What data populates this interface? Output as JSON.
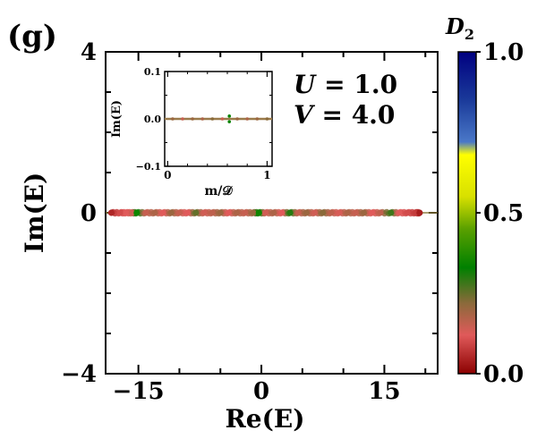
{
  "panel_label": "(g)",
  "annotation": {
    "line1": "U = 1.0",
    "line2": "V = 4.0",
    "var1": "U",
    "val1": " = 1.0",
    "var2": "V",
    "val2": " = 4.0"
  },
  "colorbar": {
    "label_main": "D",
    "label_sub": "2",
    "ticks": [
      "0.0",
      "0.5",
      "1.0"
    ],
    "tick_values": [
      0.0,
      0.5,
      1.0
    ],
    "stops": [
      {
        "v": 0.0,
        "color": "#8b0000"
      },
      {
        "v": 0.12,
        "color": "#e05a5a"
      },
      {
        "v": 0.22,
        "color": "#8a6a3a"
      },
      {
        "v": 0.33,
        "color": "#008000"
      },
      {
        "v": 0.45,
        "color": "#5aa000"
      },
      {
        "v": 0.55,
        "color": "#d8e000"
      },
      {
        "v": 0.68,
        "color": "#ffff00"
      },
      {
        "v": 0.72,
        "color": "#4a78c8"
      },
      {
        "v": 0.85,
        "color": "#1a3a9a"
      },
      {
        "v": 1.0,
        "color": "#000080"
      }
    ]
  },
  "chart_data": [
    {
      "type": "scatter",
      "name": "main",
      "xlabel": "Re(E)",
      "ylabel": "Im(E)",
      "xlim": [
        -19,
        21.5
      ],
      "ylim": [
        -4,
        4
      ],
      "xticks": [
        -15,
        0,
        15
      ],
      "xtick_labels": [
        "−15",
        "0",
        "15"
      ],
      "yticks": [
        -4,
        0,
        4
      ],
      "ytick_labels": [
        "−4",
        "0",
        "4"
      ],
      "grid": false,
      "points": [
        {
          "x": -18.3,
          "y": 0,
          "c": 0.05
        },
        {
          "x": -17.2,
          "y": 0,
          "c": 0.1
        },
        {
          "x": -16.5,
          "y": 0,
          "c": 0.12
        },
        {
          "x": -15.8,
          "y": 0,
          "c": 0.14
        },
        {
          "x": -15.2,
          "y": 0,
          "c": 0.35
        },
        {
          "x": -14.1,
          "y": 0,
          "c": 0.15
        },
        {
          "x": -13.0,
          "y": 0,
          "c": 0.18
        },
        {
          "x": -12.0,
          "y": 0,
          "c": 0.12
        },
        {
          "x": -11.0,
          "y": 0,
          "c": 0.2
        },
        {
          "x": -10.0,
          "y": 0,
          "c": 0.15
        },
        {
          "x": -9.0,
          "y": 0,
          "c": 0.12
        },
        {
          "x": -8.0,
          "y": 0,
          "c": 0.25
        },
        {
          "x": -7.0,
          "y": 0,
          "c": 0.14
        },
        {
          "x": -6.0,
          "y": 0,
          "c": 0.16
        },
        {
          "x": -5.0,
          "y": 0,
          "c": 0.2
        },
        {
          "x": -4.0,
          "y": 0,
          "c": 0.12
        },
        {
          "x": -3.0,
          "y": 0,
          "c": 0.18
        },
        {
          "x": -2.0,
          "y": 0,
          "c": 0.15
        },
        {
          "x": -1.0,
          "y": 0,
          "c": 0.2
        },
        {
          "x": -0.3,
          "y": 0,
          "c": 0.35
        },
        {
          "x": 0.5,
          "y": 0,
          "c": 0.14
        },
        {
          "x": 1.5,
          "y": 0,
          "c": 0.18
        },
        {
          "x": 2.5,
          "y": 0,
          "c": 0.12
        },
        {
          "x": 3.5,
          "y": 0,
          "c": 0.3
        },
        {
          "x": 4.5,
          "y": 0,
          "c": 0.15
        },
        {
          "x": 5.5,
          "y": 0,
          "c": 0.2
        },
        {
          "x": 6.5,
          "y": 0,
          "c": 0.14
        },
        {
          "x": 7.5,
          "y": 0,
          "c": 0.22
        },
        {
          "x": 8.5,
          "y": 0,
          "c": 0.16
        },
        {
          "x": 9.5,
          "y": 0,
          "c": 0.13
        },
        {
          "x": 10.5,
          "y": 0,
          "c": 0.18
        },
        {
          "x": 11.5,
          "y": 0,
          "c": 0.15
        },
        {
          "x": 12.5,
          "y": 0,
          "c": 0.2
        },
        {
          "x": 13.5,
          "y": 0,
          "c": 0.12
        },
        {
          "x": 14.5,
          "y": 0,
          "c": 0.16
        },
        {
          "x": 15.8,
          "y": 0,
          "c": 0.28
        },
        {
          "x": 16.8,
          "y": 0,
          "c": 0.12
        },
        {
          "x": 17.8,
          "y": 0,
          "c": 0.1
        },
        {
          "x": 18.8,
          "y": 0,
          "c": 0.08
        },
        {
          "x": 19.3,
          "y": 0,
          "c": 0.04
        }
      ]
    },
    {
      "type": "scatter",
      "name": "inset",
      "xlabel": "m/𝒟",
      "ylabel": "Im(E)",
      "xlim": [
        -0.03,
        1.05
      ],
      "ylim": [
        -0.1,
        0.1
      ],
      "xticks": [
        0,
        1
      ],
      "xtick_labels": [
        "0",
        "1"
      ],
      "yticks": [
        -0.1,
        0.0,
        0.1
      ],
      "ytick_labels": [
        "−0.1",
        "0.0",
        "0.1"
      ],
      "grid": false,
      "points": [
        {
          "x": 0.05,
          "y": 0,
          "c": 0.2
        },
        {
          "x": 0.15,
          "y": 0,
          "c": 0.15
        },
        {
          "x": 0.25,
          "y": 0,
          "c": 0.2
        },
        {
          "x": 0.35,
          "y": 0,
          "c": 0.18
        },
        {
          "x": 0.45,
          "y": 0,
          "c": 0.22
        },
        {
          "x": 0.55,
          "y": 0,
          "c": 0.15
        },
        {
          "x": 0.62,
          "y": 0.006,
          "c": 0.34
        },
        {
          "x": 0.62,
          "y": -0.006,
          "c": 0.34
        },
        {
          "x": 0.7,
          "y": 0,
          "c": 0.2
        },
        {
          "x": 0.8,
          "y": 0,
          "c": 0.18
        },
        {
          "x": 0.9,
          "y": 0,
          "c": 0.2
        },
        {
          "x": 1.0,
          "y": 0,
          "c": 0.22
        }
      ]
    }
  ]
}
